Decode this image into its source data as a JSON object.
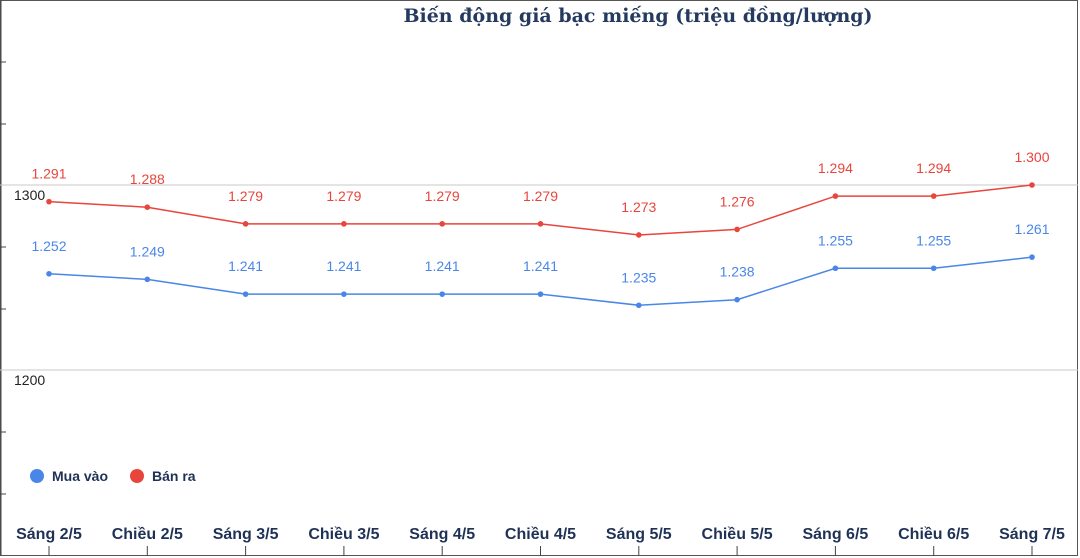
{
  "chart_data": {
    "type": "line",
    "title": "Biến động giá bạc miếng (triệu đồng/lượng)",
    "categories": [
      "Sáng 2/5",
      "Chiều 2/5",
      "Sáng 3/5",
      "Chiều 3/5",
      "Sáng 4/5",
      "Chiều 4/5",
      "Sáng 5/5",
      "Chiều 5/5",
      "Sáng 6/5",
      "Chiều 6/5",
      "Sáng 7/5"
    ],
    "series": [
      {
        "name": "Mua vào",
        "color": "#4a86e8",
        "values": [
          1252,
          1249,
          1241,
          1241,
          1241,
          1241,
          1235,
          1238,
          1255,
          1255,
          1261
        ],
        "labels": [
          "1.252",
          "1.249",
          "1.241",
          "1.241",
          "1.241",
          "1.241",
          "1.235",
          "1.238",
          "1.255",
          "1.255",
          "1.261"
        ]
      },
      {
        "name": "Bán ra",
        "color": "#e8453c",
        "values": [
          1291,
          1288,
          1279,
          1279,
          1279,
          1279,
          1273,
          1276,
          1294,
          1294,
          1300
        ],
        "labels": [
          "1.291",
          "1.288",
          "1.279",
          "1.279",
          "1.279",
          "1.279",
          "1.273",
          "1.276",
          "1.294",
          "1.294",
          "1.300"
        ]
      }
    ],
    "y_ticks": [
      "1300",
      "1200"
    ],
    "y_tick_values": [
      1300,
      1200
    ],
    "legend_position": "bottom-left"
  }
}
